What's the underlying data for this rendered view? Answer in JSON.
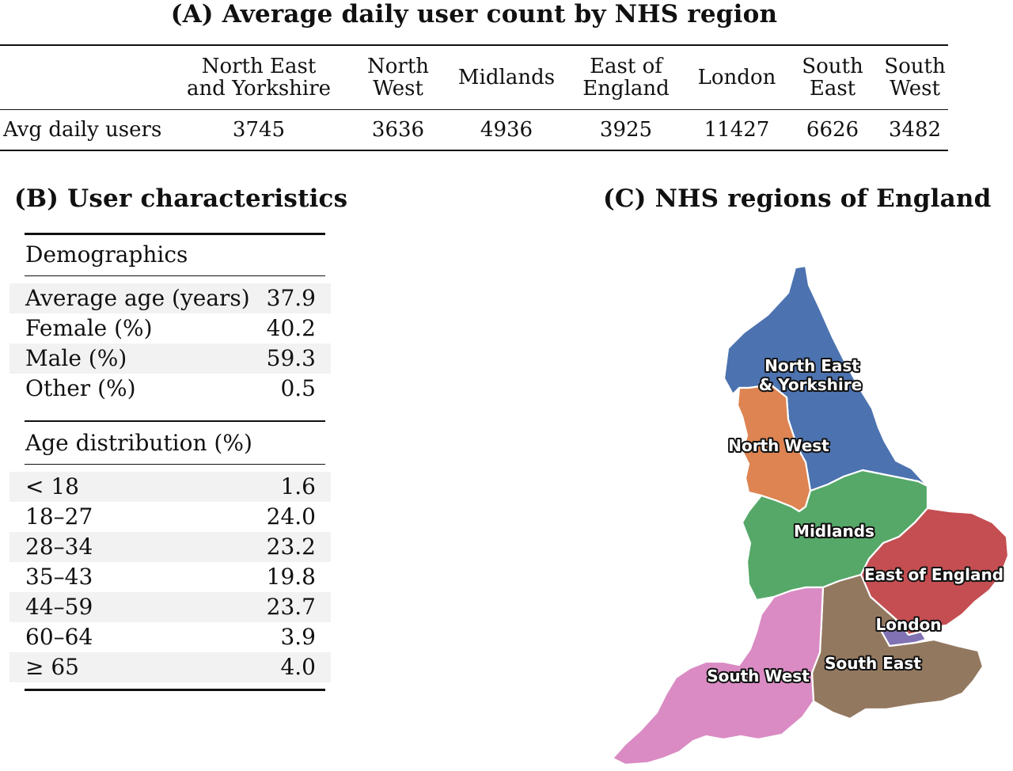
{
  "panel_a": {
    "title": "(A) Average daily user count by NHS region",
    "row_label": "Avg daily users",
    "columns": [
      {
        "header": "North East\nand Yorkshire",
        "value": "3745"
      },
      {
        "header": "North\nWest",
        "value": "3636"
      },
      {
        "header": "Midlands",
        "value": "4936"
      },
      {
        "header": "East of\nEngland",
        "value": "3925"
      },
      {
        "header": "London",
        "value": "11427"
      },
      {
        "header": "South\nEast",
        "value": "6626"
      },
      {
        "header": "South\nWest",
        "value": "3482"
      }
    ]
  },
  "panel_b": {
    "title": "(B) User characteristics",
    "demographics": {
      "heading": "Demographics",
      "rows": [
        {
          "label": "Average age (years)",
          "value": "37.9"
        },
        {
          "label": "Female (%)",
          "value": "40.2"
        },
        {
          "label": "Male (%)",
          "value": "59.3"
        },
        {
          "label": "Other (%)",
          "value": "0.5"
        }
      ]
    },
    "age_distribution": {
      "heading": "Age distribution (%)",
      "rows": [
        {
          "label": "< 18",
          "value": "1.6"
        },
        {
          "label": "18–27",
          "value": "24.0"
        },
        {
          "label": "28–34",
          "value": "23.2"
        },
        {
          "label": "35–43",
          "value": "19.8"
        },
        {
          "label": "44–59",
          "value": "23.7"
        },
        {
          "label": "60–64",
          "value": "3.9"
        },
        {
          "label": "≥ 65",
          "value": "4.0"
        }
      ]
    }
  },
  "panel_c": {
    "title": "(C) NHS regions of England",
    "regions": [
      {
        "id": "north-east-yorkshire",
        "label_lines": [
          "North East",
          "& Yorkshire"
        ],
        "color": "#4c72b0"
      },
      {
        "id": "north-west",
        "label_lines": [
          "North West"
        ],
        "color": "#dd8452"
      },
      {
        "id": "midlands",
        "label_lines": [
          "Midlands"
        ],
        "color": "#55a868"
      },
      {
        "id": "east-of-england",
        "label_lines": [
          "East of England"
        ],
        "color": "#c44e52"
      },
      {
        "id": "london",
        "label_lines": [
          "London"
        ],
        "color": "#8172b3"
      },
      {
        "id": "south-east",
        "label_lines": [
          "South East"
        ],
        "color": "#937860"
      },
      {
        "id": "south-west",
        "label_lines": [
          "South West"
        ],
        "color": "#da8bc3"
      }
    ]
  },
  "chart_data": [
    {
      "type": "table",
      "title": "(A) Average daily user count by NHS region",
      "columns": [
        "North East and Yorkshire",
        "North West",
        "Midlands",
        "East of England",
        "London",
        "South East",
        "South West"
      ],
      "rows": [
        {
          "label": "Avg daily users",
          "values": [
            3745,
            3636,
            4936,
            3925,
            11427,
            6626,
            3482
          ]
        }
      ]
    },
    {
      "type": "table",
      "title": "(B) User characteristics",
      "sections": [
        {
          "heading": "Demographics",
          "rows": [
            [
              "Average age (years)",
              37.9
            ],
            [
              "Female (%)",
              40.2
            ],
            [
              "Male (%)",
              59.3
            ],
            [
              "Other (%)",
              0.5
            ]
          ]
        },
        {
          "heading": "Age distribution (%)",
          "rows": [
            [
              "< 18",
              1.6
            ],
            [
              "18–27",
              24.0
            ],
            [
              "28–34",
              23.2
            ],
            [
              "35–43",
              19.8
            ],
            [
              "44–59",
              23.7
            ],
            [
              "60–64",
              3.9
            ],
            [
              "≥ 65",
              4.0
            ]
          ]
        }
      ]
    }
  ]
}
